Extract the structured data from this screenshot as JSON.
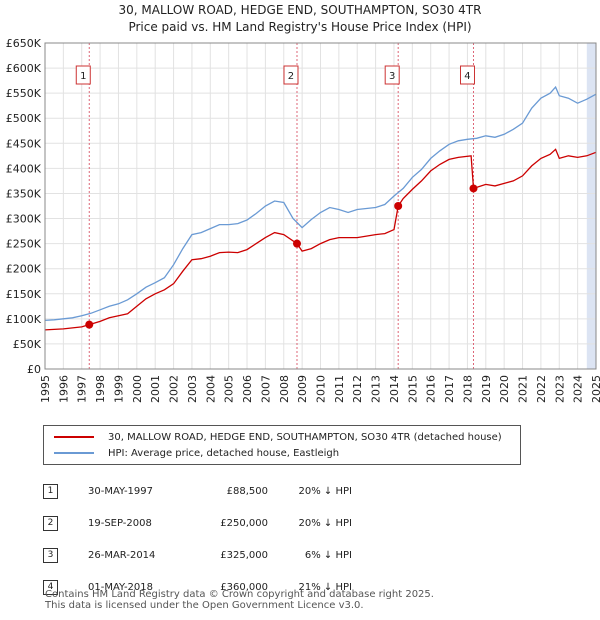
{
  "title_line1": "30, MALLOW ROAD, HEDGE END, SOUTHAMPTON, SO30 4TR",
  "title_line2": "Price paid vs. HM Land Registry's House Price Index (HPI)",
  "colors": {
    "red": "#cc0000",
    "blue": "#6a9ad4",
    "band": "#dce4f3",
    "marker_dash": "#dd6677"
  },
  "chart_data": {
    "type": "line",
    "xlim": [
      1995,
      2025
    ],
    "ylim": [
      0,
      650000
    ],
    "x_ticks": [
      1995,
      1996,
      1997,
      1998,
      1999,
      2000,
      2001,
      2002,
      2003,
      2004,
      2005,
      2006,
      2007,
      2008,
      2009,
      2010,
      2011,
      2012,
      2013,
      2014,
      2015,
      2016,
      2017,
      2018,
      2019,
      2020,
      2021,
      2022,
      2023,
      2024,
      2025
    ],
    "y_ticks": [
      {
        "value": 0,
        "label": "£0"
      },
      {
        "value": 50000,
        "label": "£50K"
      },
      {
        "value": 100000,
        "label": "£100K"
      },
      {
        "value": 150000,
        "label": "£150K"
      },
      {
        "value": 200000,
        "label": "£200K"
      },
      {
        "value": 250000,
        "label": "£250K"
      },
      {
        "value": 300000,
        "label": "£300K"
      },
      {
        "value": 350000,
        "label": "£350K"
      },
      {
        "value": 400000,
        "label": "£400K"
      },
      {
        "value": 450000,
        "label": "£450K"
      },
      {
        "value": 500000,
        "label": "£500K"
      },
      {
        "value": 550000,
        "label": "£550K"
      },
      {
        "value": 600000,
        "label": "£600K"
      },
      {
        "value": 650000,
        "label": "£650K"
      }
    ],
    "highlight_band": [
      2024.5,
      2025
    ],
    "series": [
      {
        "name": "30, MALLOW ROAD, HEDGE END, SOUTHAMPTON, SO30 4TR (detached house)",
        "color": "#cc0000",
        "points": [
          [
            1995,
            78000
          ],
          [
            1995.5,
            79000
          ],
          [
            1996,
            80000
          ],
          [
            1996.5,
            82000
          ],
          [
            1997,
            84000
          ],
          [
            1997.41,
            88500
          ],
          [
            1998,
            95000
          ],
          [
            1998.5,
            102000
          ],
          [
            1999,
            106000
          ],
          [
            1999.5,
            110000
          ],
          [
            2000,
            125000
          ],
          [
            2000.5,
            140000
          ],
          [
            2001,
            150000
          ],
          [
            2001.5,
            158000
          ],
          [
            2002,
            170000
          ],
          [
            2002.5,
            195000
          ],
          [
            2003,
            218000
          ],
          [
            2003.5,
            220000
          ],
          [
            2004,
            225000
          ],
          [
            2004.5,
            232000
          ],
          [
            2005,
            233000
          ],
          [
            2005.5,
            232000
          ],
          [
            2006,
            238000
          ],
          [
            2006.5,
            250000
          ],
          [
            2007,
            262000
          ],
          [
            2007.5,
            272000
          ],
          [
            2008,
            268000
          ],
          [
            2008.72,
            250000
          ],
          [
            2009,
            235000
          ],
          [
            2009.5,
            240000
          ],
          [
            2010,
            250000
          ],
          [
            2010.5,
            258000
          ],
          [
            2011,
            262000
          ],
          [
            2011.5,
            262000
          ],
          [
            2012,
            262000
          ],
          [
            2012.5,
            265000
          ],
          [
            2013,
            268000
          ],
          [
            2013.5,
            270000
          ],
          [
            2014,
            278000
          ],
          [
            2014.23,
            325000
          ],
          [
            2014.5,
            340000
          ],
          [
            2015,
            358000
          ],
          [
            2015.5,
            375000
          ],
          [
            2016,
            395000
          ],
          [
            2016.5,
            408000
          ],
          [
            2017,
            418000
          ],
          [
            2017.5,
            422000
          ],
          [
            2018.2,
            425000
          ],
          [
            2018.33,
            360000
          ],
          [
            2018.5,
            362000
          ],
          [
            2019,
            368000
          ],
          [
            2019.5,
            365000
          ],
          [
            2020,
            370000
          ],
          [
            2020.5,
            375000
          ],
          [
            2021,
            385000
          ],
          [
            2021.5,
            405000
          ],
          [
            2022,
            420000
          ],
          [
            2022.5,
            428000
          ],
          [
            2022.8,
            438000
          ],
          [
            2023,
            420000
          ],
          [
            2023.5,
            425000
          ],
          [
            2024,
            422000
          ],
          [
            2024.5,
            425000
          ],
          [
            2025,
            432000
          ]
        ]
      },
      {
        "name": "HPI: Average price, detached house, Eastleigh",
        "color": "#6a9ad4",
        "points": [
          [
            1995,
            97000
          ],
          [
            1995.5,
            98000
          ],
          [
            1996,
            100000
          ],
          [
            1996.5,
            102000
          ],
          [
            1997,
            106000
          ],
          [
            1997.5,
            111000
          ],
          [
            1998,
            118000
          ],
          [
            1998.5,
            125000
          ],
          [
            1999,
            130000
          ],
          [
            1999.5,
            138000
          ],
          [
            2000,
            150000
          ],
          [
            2000.5,
            163000
          ],
          [
            2001,
            172000
          ],
          [
            2001.5,
            182000
          ],
          [
            2002,
            208000
          ],
          [
            2002.5,
            240000
          ],
          [
            2003,
            268000
          ],
          [
            2003.5,
            272000
          ],
          [
            2004,
            280000
          ],
          [
            2004.5,
            288000
          ],
          [
            2005,
            288000
          ],
          [
            2005.5,
            290000
          ],
          [
            2006,
            297000
          ],
          [
            2006.5,
            310000
          ],
          [
            2007,
            325000
          ],
          [
            2007.5,
            335000
          ],
          [
            2008,
            332000
          ],
          [
            2008.5,
            300000
          ],
          [
            2009,
            282000
          ],
          [
            2009.5,
            298000
          ],
          [
            2010,
            312000
          ],
          [
            2010.5,
            322000
          ],
          [
            2011,
            318000
          ],
          [
            2011.5,
            312000
          ],
          [
            2012,
            318000
          ],
          [
            2012.5,
            320000
          ],
          [
            2013,
            322000
          ],
          [
            2013.5,
            328000
          ],
          [
            2014,
            345000
          ],
          [
            2014.5,
            360000
          ],
          [
            2015,
            382000
          ],
          [
            2015.5,
            398000
          ],
          [
            2016,
            420000
          ],
          [
            2016.5,
            435000
          ],
          [
            2017,
            448000
          ],
          [
            2017.5,
            455000
          ],
          [
            2018,
            458000
          ],
          [
            2018.5,
            460000
          ],
          [
            2019,
            465000
          ],
          [
            2019.5,
            462000
          ],
          [
            2020,
            468000
          ],
          [
            2020.5,
            478000
          ],
          [
            2021,
            490000
          ],
          [
            2021.5,
            520000
          ],
          [
            2022,
            540000
          ],
          [
            2022.5,
            550000
          ],
          [
            2022.8,
            562000
          ],
          [
            2023,
            545000
          ],
          [
            2023.5,
            540000
          ],
          [
            2024,
            530000
          ],
          [
            2024.5,
            538000
          ],
          [
            2025,
            548000
          ]
        ]
      }
    ],
    "sales": [
      {
        "id": "1",
        "x": 1997.41,
        "price": 88500
      },
      {
        "id": "2",
        "x": 2008.72,
        "price": 250000
      },
      {
        "id": "3",
        "x": 2014.23,
        "price": 325000
      },
      {
        "id": "4",
        "x": 2018.33,
        "price": 360000
      }
    ]
  },
  "legend": {
    "red_label": "30, MALLOW ROAD, HEDGE END, SOUTHAMPTON, SO30 4TR (detached house)",
    "blue_label": "HPI: Average price, detached house, Eastleigh"
  },
  "table": [
    {
      "num": "1",
      "date": "30-MAY-1997",
      "price": "£88,500",
      "hpi": "20% ↓ HPI"
    },
    {
      "num": "2",
      "date": "19-SEP-2008",
      "price": "£250,000",
      "hpi": "20% ↓ HPI"
    },
    {
      "num": "3",
      "date": "26-MAR-2014",
      "price": "£325,000",
      "hpi": "6% ↓ HPI"
    },
    {
      "num": "4",
      "date": "01-MAY-2018",
      "price": "£360,000",
      "hpi": "21% ↓ HPI"
    }
  ],
  "footer_line1": "Contains HM Land Registry data © Crown copyright and database right 2025.",
  "footer_line2": "This data is licensed under the Open Government Licence v3.0."
}
